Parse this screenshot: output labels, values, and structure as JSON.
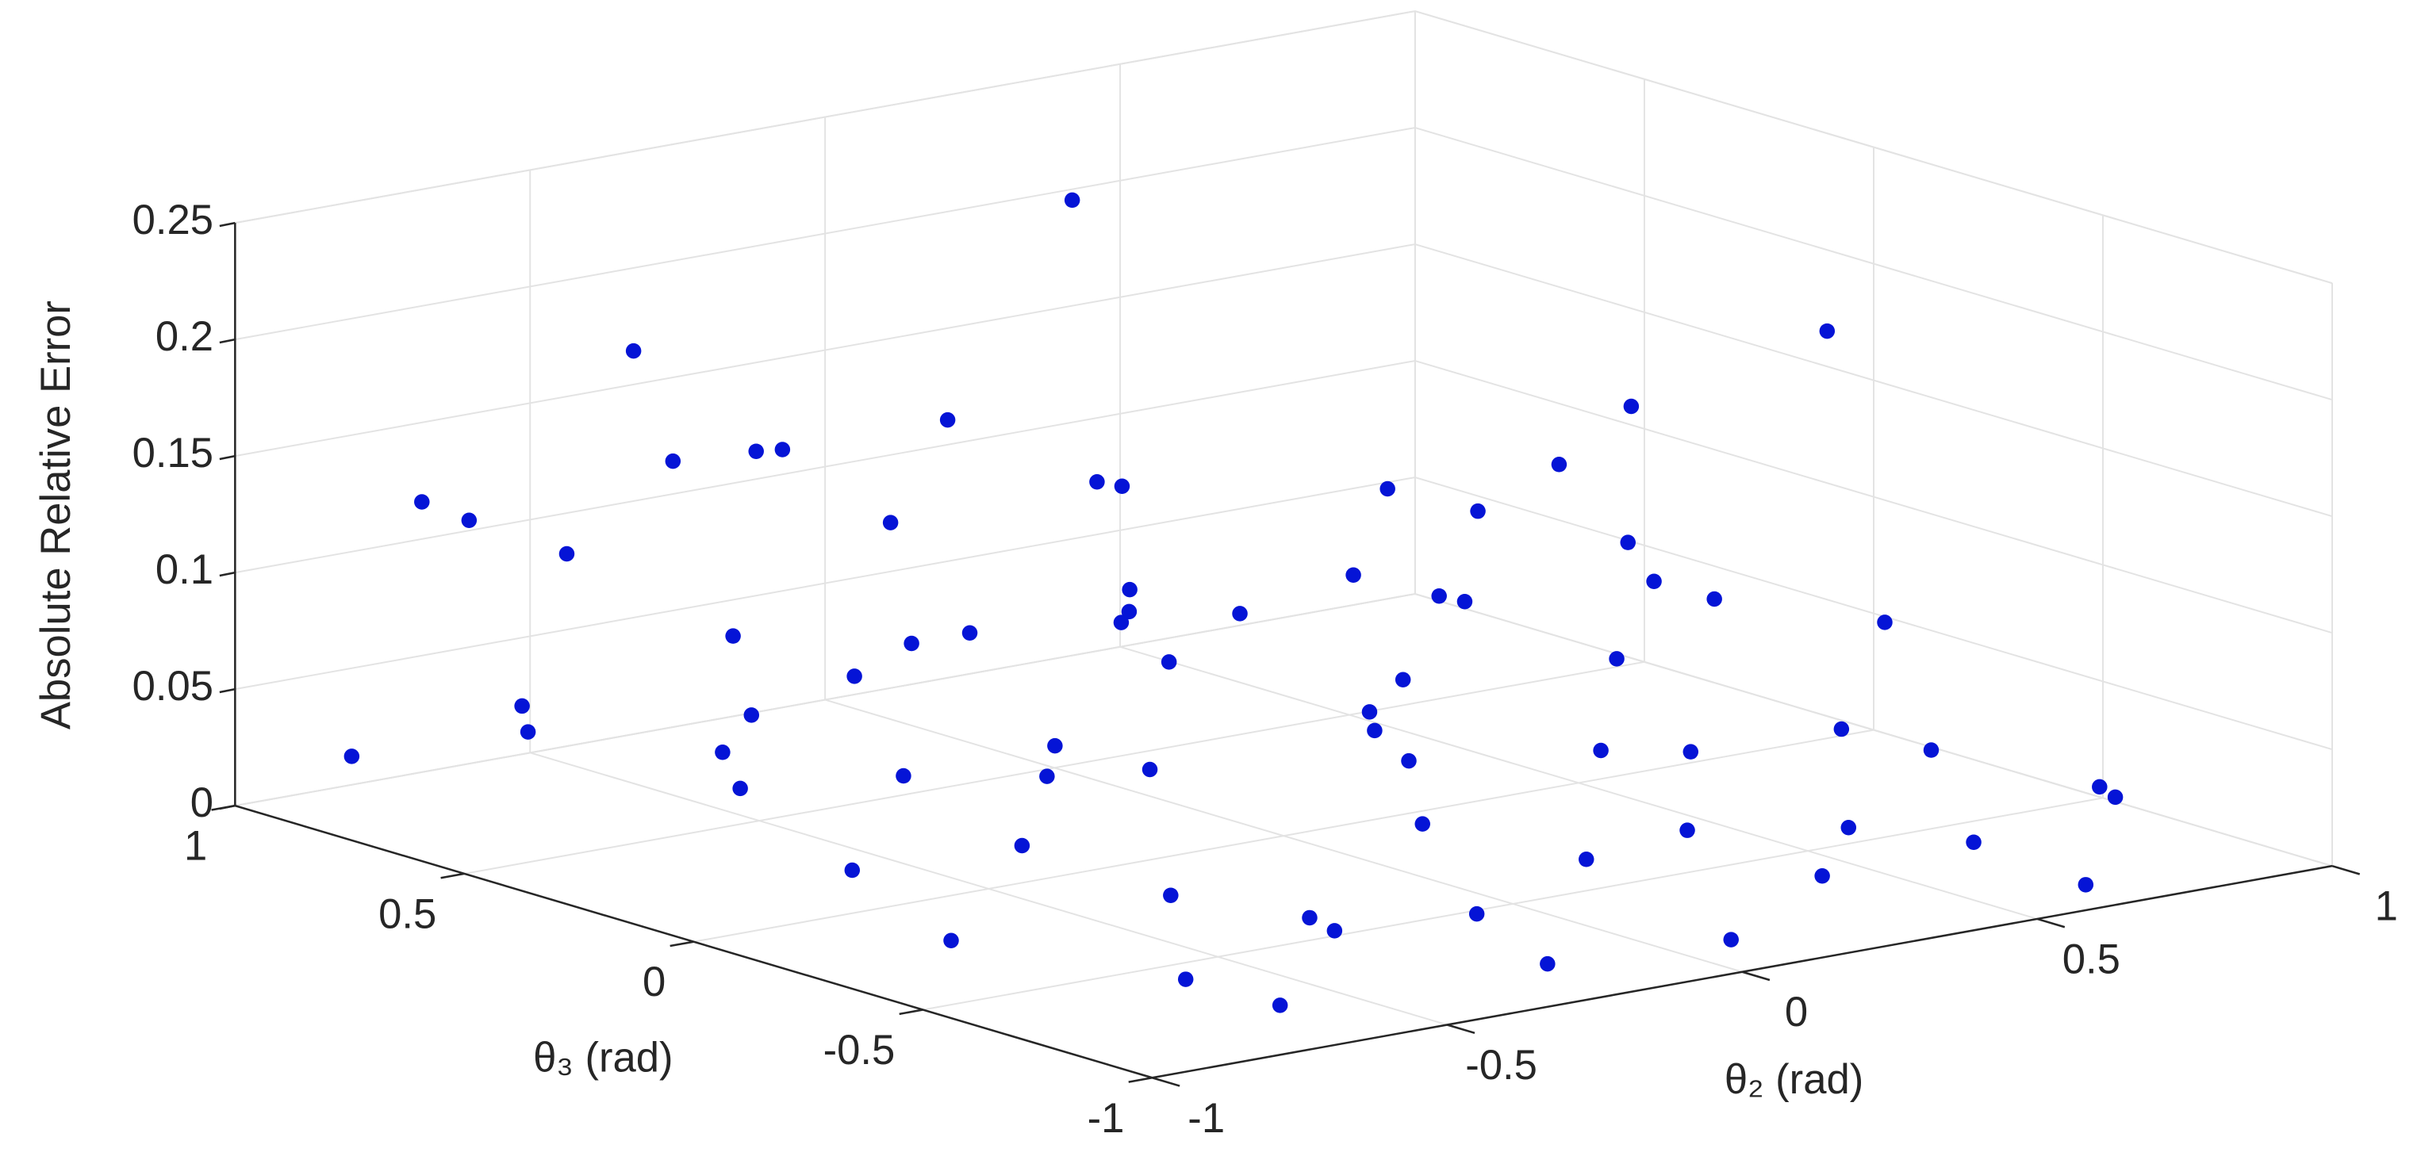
{
  "chart_data": {
    "type": "scatter3d",
    "xlabel": "θ₂ (rad)",
    "ylabel": "θ₃ (rad)",
    "zlabel": "Absolute Relative Error",
    "xlim": [
      -1,
      1
    ],
    "ylim": [
      -1,
      1
    ],
    "zlim": [
      0,
      0.25
    ],
    "xticks": [
      -1,
      -0.5,
      0,
      0.5,
      1
    ],
    "yticks": [
      -1,
      -0.5,
      0,
      0.5,
      1
    ],
    "zticks": [
      0,
      0.05,
      0.1,
      0.15,
      0.2,
      0.25
    ],
    "grid": true,
    "color": "#0514d6",
    "x": [
      -0.95,
      -0.89,
      -0.82,
      -0.76,
      -0.69,
      -0.63,
      -0.56,
      -0.5,
      -0.43,
      -0.37,
      -0.3,
      -0.24,
      -0.17,
      -0.11,
      -0.04,
      0.02,
      0.09,
      0.15,
      0.22,
      0.28,
      0.35,
      0.41,
      0.48,
      0.54,
      0.61,
      0.67,
      0.74,
      0.8,
      0.87,
      0.93,
      -0.91,
      -0.84,
      -0.78,
      -0.71,
      -0.65,
      -0.58,
      -0.52,
      -0.45,
      -0.39,
      -0.32,
      -0.26,
      -0.19,
      -0.13,
      -0.06,
      0,
      0.07,
      0.13,
      0.2,
      0.26,
      0.33,
      0.39,
      0.46,
      0.52,
      0.59,
      0.65,
      0.72,
      0.78,
      0.85,
      0.91,
      0.98,
      -0.62,
      0.38,
      0.96,
      -0.8,
      -0.35,
      0.15,
      0.7,
      0.9,
      -0.15,
      0.55,
      -0.7,
      0.05
    ],
    "y": [
      0.81,
      -0.42,
      0.13,
      0.67,
      -0.88,
      0.35,
      -0.15,
      0.92,
      -0.61,
      0.04,
      0.55,
      -0.73,
      0.28,
      -0.34,
      0.76,
      -0.95,
      0.47,
      -0.08,
      0.62,
      -0.52,
      0.19,
      0.88,
      -0.27,
      -0.81,
      0.39,
      0.71,
      -0.46,
      0.09,
      -0.66,
      0.97,
      -0.23,
      0.58,
      -0.79,
      0.31,
      0.94,
      -0.5,
      0.16,
      -0.69,
      0.83,
      -0.12,
      -0.91,
      0.44,
      0.69,
      -0.38,
      0.25,
      -0.57,
      0.9,
      0.07,
      -0.84,
      0.52,
      -0.19,
      -0.64,
      0.33,
      -0.99,
      0.11,
      -0.29,
      0.58,
      -0.72,
      0.42,
      -0.05,
      0.62,
      0.95,
      0.05,
      0.85,
      0.7,
      0.6,
      0.3,
      0.4,
      0.9,
      -0.1,
      0.3,
      0.4
    ],
    "z": [
      0.03,
      0.02,
      0.05,
      0.04,
      0.01,
      0.06,
      0.03,
      0.09,
      0.02,
      0.04,
      0.05,
      0.02,
      0.03,
      0.07,
      0.04,
      0.01,
      0.06,
      0.03,
      0.05,
      0.02,
      0.04,
      0.08,
      0.03,
      0.02,
      0.05,
      0.04,
      0.03,
      0.06,
      0.02,
      0.05,
      0.04,
      0.06,
      0.02,
      0.05,
      0.11,
      0.03,
      0.04,
      0.02,
      0.13,
      0.05,
      0.01,
      0.07,
      0.1,
      0.03,
      0.06,
      0.02,
      0.12,
      0.04,
      0.02,
      0.05,
      0.03,
      0.02,
      0.06,
      0.01,
      0.04,
      0.03,
      0.07,
      0.02,
      0.06,
      0.05,
      0.2,
      0.2,
      0.17,
      0.13,
      0.14,
      0.11,
      0.11,
      0.12,
      0.12,
      0.09,
      0.1,
      0.08
    ]
  }
}
